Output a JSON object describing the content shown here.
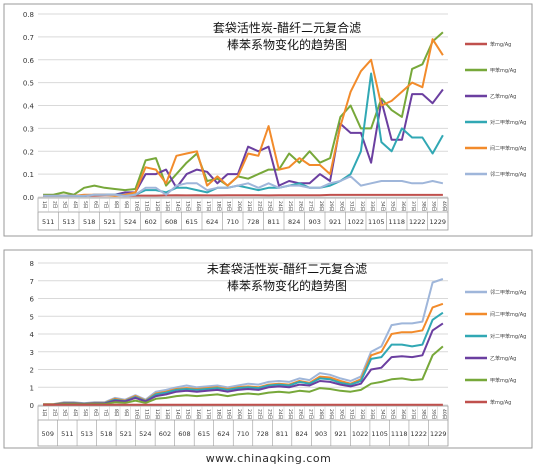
{
  "watermark": "www.chinaqking.com",
  "chart_data": [
    {
      "type": "line",
      "title_lines": [
        "套袋活性炭-醋纤二元复合滤",
        "棒苯系物变化的趋势图"
      ],
      "ylim": [
        0,
        0.8
      ],
      "yticks": [
        0,
        0.1,
        0.2,
        0.3,
        0.4,
        0.5,
        0.6,
        0.7,
        0.8
      ],
      "grid": true,
      "legend_position": "right",
      "day_labels": [
        "1日",
        "2日",
        "3日",
        "4日",
        "5日",
        "6日",
        "7日",
        "8日",
        "9日",
        "10日",
        "11日",
        "12日",
        "13日",
        "14日",
        "15日",
        "16日",
        "17日",
        "18日",
        "19日",
        "20日",
        "21日",
        "22日",
        "23日",
        "24日",
        "25日",
        "26日",
        "27日",
        "28日",
        "29日",
        "30日",
        "31日",
        "32日",
        "33日",
        "34日",
        "35日",
        "36日",
        "37日",
        "38日",
        "39日",
        "40日"
      ],
      "date_labels": [
        "511",
        "513",
        "518",
        "521",
        "524",
        "602",
        "608",
        "615",
        "624",
        "710",
        "728",
        "811",
        "824",
        "903",
        "921",
        "1022",
        "1105",
        "1118",
        "1222",
        "1229"
      ],
      "series": [
        {
          "name": "苯mg/Ag",
          "color": "#c0504d",
          "values": [
            0.005,
            0.005,
            0.005,
            0.005,
            0.006,
            0.006,
            0.008,
            0.008,
            0.006,
            0.006,
            0.006,
            0.006,
            0.007,
            0.008,
            0.007,
            0.008,
            0.007,
            0.007,
            0.008,
            0.008,
            0.008,
            0.008,
            0.007,
            0.008,
            0.008,
            0.008,
            0.008,
            0.008,
            0.009,
            0.009,
            0.009,
            0.009,
            0.009,
            0.009,
            0.009,
            0.009,
            0.009,
            0.009,
            0.009,
            0.009
          ]
        },
        {
          "name": "甲苯mg/Ag",
          "color": "#77a83a",
          "values": [
            0.01,
            0.01,
            0.02,
            0.01,
            0.04,
            0.05,
            0.04,
            0.035,
            0.03,
            0.035,
            0.16,
            0.17,
            0.05,
            0.1,
            0.15,
            0.19,
            0.07,
            0.08,
            0.05,
            0.09,
            0.08,
            0.1,
            0.12,
            0.12,
            0.19,
            0.15,
            0.2,
            0.15,
            0.17,
            0.35,
            0.4,
            0.3,
            0.3,
            0.43,
            0.38,
            0.35,
            0.56,
            0.58,
            0.68,
            0.72
          ]
        },
        {
          "name": "乙苯mg/Ag",
          "color": "#6b3fa0",
          "values": [
            0.005,
            0.005,
            0.005,
            0.005,
            0.005,
            0.01,
            0.01,
            0.01,
            0.02,
            0.02,
            0.1,
            0.1,
            0.12,
            0.04,
            0.1,
            0.12,
            0.11,
            0.06,
            0.1,
            0.1,
            0.22,
            0.2,
            0.22,
            0.05,
            0.07,
            0.06,
            0.06,
            0.1,
            0.07,
            0.32,
            0.28,
            0.28,
            0.15,
            0.42,
            0.25,
            0.25,
            0.45,
            0.45,
            0.41,
            0.47
          ]
        },
        {
          "name": "对二甲苯mg/Ag",
          "color": "#31a8b4",
          "values": [
            0.005,
            0.005,
            0.005,
            0.005,
            0.005,
            0.01,
            0.01,
            0.01,
            0.01,
            0.01,
            0.03,
            0.03,
            0.02,
            0.04,
            0.04,
            0.03,
            0.02,
            0.04,
            0.04,
            0.05,
            0.04,
            0.03,
            0.04,
            0.04,
            0.05,
            0.06,
            0.04,
            0.04,
            0.05,
            0.07,
            0.1,
            0.2,
            0.54,
            0.24,
            0.2,
            0.3,
            0.26,
            0.26,
            0.19,
            0.27
          ]
        },
        {
          "name": "间二甲苯mg/Ag",
          "color": "#f28b2b",
          "values": [
            0.005,
            0.005,
            0.005,
            0.005,
            0.01,
            0.01,
            0.01,
            0.005,
            0.01,
            0.02,
            0.13,
            0.12,
            0.06,
            0.18,
            0.19,
            0.2,
            0.05,
            0.09,
            0.05,
            0.09,
            0.19,
            0.18,
            0.31,
            0.12,
            0.13,
            0.17,
            0.14,
            0.14,
            0.1,
            0.31,
            0.46,
            0.55,
            0.6,
            0.4,
            0.42,
            0.46,
            0.5,
            0.48,
            0.69,
            0.62
          ]
        },
        {
          "name": "邻二甲苯mg/Ag",
          "color": "#9fb6da",
          "values": [
            0.005,
            0.005,
            0.005,
            0.005,
            0.005,
            0.01,
            0.01,
            0.01,
            0.005,
            0.01,
            0.04,
            0.04,
            0.01,
            0.05,
            0.06,
            0.06,
            0.03,
            0.04,
            0.04,
            0.05,
            0.06,
            0.04,
            0.06,
            0.04,
            0.05,
            0.05,
            0.04,
            0.04,
            0.06,
            0.07,
            0.09,
            0.05,
            0.06,
            0.07,
            0.07,
            0.07,
            0.06,
            0.06,
            0.07,
            0.06
          ]
        }
      ]
    },
    {
      "type": "line",
      "title_lines": [
        "未套袋活性炭-醋纤二元复合滤",
        "棒苯系物变化的趋势图"
      ],
      "ylim": [
        0,
        8
      ],
      "yticks": [
        0,
        1,
        2,
        3,
        4,
        5,
        6,
        7,
        8
      ],
      "grid": true,
      "legend_position": "right",
      "day_labels": [
        "1日",
        "2日",
        "3日",
        "4日",
        "5日",
        "6日",
        "7日",
        "8日",
        "9日",
        "10日",
        "11日",
        "12日",
        "13日",
        "14日",
        "15日",
        "16日",
        "17日",
        "18日",
        "19日",
        "20日",
        "21日",
        "22日",
        "23日",
        "24日",
        "25日",
        "26日",
        "27日",
        "28日",
        "29日",
        "30日",
        "31日",
        "32日",
        "33日",
        "34日",
        "35日",
        "36日",
        "37日",
        "38日",
        "39日",
        "40日"
      ],
      "date_labels": [
        "509",
        "511",
        "513",
        "518",
        "521",
        "524",
        "602",
        "608",
        "615",
        "624",
        "710",
        "728",
        "811",
        "824",
        "903",
        "921",
        "1022",
        "1105",
        "1118",
        "1222",
        "1229"
      ],
      "series": [
        {
          "name": "邻二甲苯mg/Ag",
          "color": "#9fb6da",
          "values": [
            0.05,
            0.05,
            0.15,
            0.15,
            0.1,
            0.15,
            0.15,
            0.4,
            0.3,
            0.55,
            0.3,
            0.75,
            0.85,
            1.0,
            1.1,
            1.0,
            1.05,
            1.1,
            1.0,
            1.1,
            1.2,
            1.15,
            1.3,
            1.35,
            1.3,
            1.5,
            1.4,
            1.8,
            1.7,
            1.5,
            1.35,
            1.6,
            3.0,
            3.3,
            4.5,
            4.6,
            4.6,
            4.7,
            6.9,
            7.1
          ]
        },
        {
          "name": "间二甲苯mg/Ag",
          "color": "#f28b2b",
          "values": [
            0.04,
            0.04,
            0.12,
            0.12,
            0.08,
            0.12,
            0.12,
            0.35,
            0.25,
            0.5,
            0.25,
            0.65,
            0.75,
            0.9,
            0.95,
            0.9,
            0.95,
            1.0,
            0.9,
            1.0,
            1.05,
            1.0,
            1.15,
            1.2,
            1.15,
            1.35,
            1.25,
            1.6,
            1.55,
            1.35,
            1.2,
            1.45,
            2.8,
            3.0,
            4.0,
            4.1,
            4.1,
            4.2,
            5.5,
            5.7
          ]
        },
        {
          "name": "对二甲苯mg/Ag",
          "color": "#31a8b4",
          "values": [
            0.03,
            0.03,
            0.1,
            0.1,
            0.07,
            0.1,
            0.1,
            0.3,
            0.22,
            0.45,
            0.22,
            0.6,
            0.7,
            0.85,
            0.9,
            0.85,
            0.9,
            0.95,
            0.85,
            0.95,
            1.0,
            0.95,
            1.1,
            1.15,
            1.1,
            1.3,
            1.2,
            1.5,
            1.45,
            1.25,
            1.15,
            1.35,
            2.6,
            2.7,
            3.4,
            3.4,
            3.3,
            3.4,
            4.8,
            5.2
          ]
        },
        {
          "name": "乙苯mg/Ag",
          "color": "#6b3fa0",
          "values": [
            0.03,
            0.03,
            0.08,
            0.08,
            0.06,
            0.08,
            0.08,
            0.25,
            0.2,
            0.4,
            0.2,
            0.5,
            0.6,
            0.75,
            0.8,
            0.75,
            0.8,
            0.85,
            0.75,
            0.85,
            0.9,
            0.85,
            1.0,
            1.05,
            1.0,
            1.15,
            1.1,
            1.35,
            1.3,
            1.15,
            1.05,
            1.2,
            2.0,
            2.1,
            2.7,
            2.75,
            2.7,
            2.8,
            4.2,
            4.6
          ]
        },
        {
          "name": "甲苯mg/Ag",
          "color": "#77a83a",
          "values": [
            0.02,
            0.02,
            0.05,
            0.05,
            0.04,
            0.05,
            0.05,
            0.15,
            0.12,
            0.25,
            0.12,
            0.35,
            0.4,
            0.5,
            0.55,
            0.5,
            0.55,
            0.6,
            0.5,
            0.6,
            0.65,
            0.6,
            0.7,
            0.75,
            0.7,
            0.8,
            0.75,
            0.95,
            0.9,
            0.8,
            0.75,
            0.85,
            1.2,
            1.3,
            1.45,
            1.5,
            1.4,
            1.45,
            2.8,
            3.3
          ]
        },
        {
          "name": "苯mg/Ag",
          "color": "#c0504d",
          "values": [
            0.01,
            0.01,
            0.01,
            0.01,
            0.01,
            0.01,
            0.01,
            0.01,
            0.01,
            0.01,
            0.01,
            0.01,
            0.01,
            0.01,
            0.01,
            0.01,
            0.01,
            0.01,
            0.01,
            0.01,
            0.01,
            0.01,
            0.01,
            0.01,
            0.01,
            0.01,
            0.01,
            0.01,
            0.01,
            0.01,
            0.01,
            0.01,
            0.01,
            0.01,
            0.01,
            0.01,
            0.01,
            0.01,
            0.01,
            0.01
          ]
        }
      ]
    }
  ]
}
